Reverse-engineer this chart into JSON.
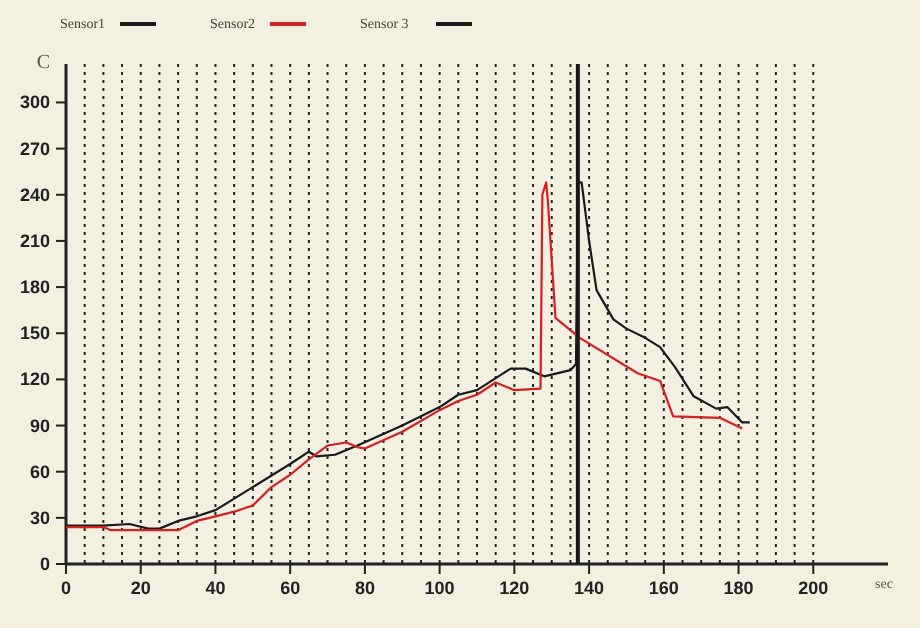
{
  "chart_data": {
    "type": "line",
    "xlabel": "sec",
    "ylabel": "C",
    "xlim": [
      0,
      220
    ],
    "ylim": [
      0,
      325
    ],
    "xticks": [
      0,
      20,
      40,
      60,
      80,
      100,
      120,
      140,
      160,
      180,
      200
    ],
    "yticks": [
      0,
      30,
      60,
      90,
      120,
      150,
      180,
      210,
      240,
      270,
      300
    ],
    "grid": "x",
    "legend": "top left",
    "marker": "none",
    "line_style": "solid",
    "series": [
      {
        "name": "Sensor1",
        "color": "#1a1a1a",
        "x": [
          0,
          10,
          17,
          22,
          25,
          30,
          35,
          40,
          50,
          60,
          65,
          67,
          72,
          78,
          90,
          100,
          105,
          110,
          119,
          123,
          128,
          135,
          136.5,
          137,
          138,
          140,
          142,
          146.5,
          150,
          155,
          159,
          163,
          168,
          174,
          177,
          181,
          183
        ],
        "values": [
          25,
          25,
          26,
          23,
          23,
          28,
          31,
          35,
          50,
          65,
          73,
          70,
          71,
          77,
          90,
          102,
          110,
          113,
          127,
          127,
          122,
          126,
          130,
          248,
          248,
          210,
          178,
          159,
          153,
          147,
          141,
          128,
          109,
          101,
          102,
          92,
          92
        ]
      },
      {
        "name": "Sensor2",
        "color": "#d42020",
        "x": [
          0,
          10,
          12,
          30,
          35,
          40,
          45,
          50,
          55,
          60,
          65,
          70,
          75,
          78,
          80,
          90,
          100,
          105,
          110,
          115,
          120,
          127,
          127.5,
          128.5,
          129,
          131,
          137.5,
          153,
          159,
          162.5,
          175,
          181
        ],
        "values": [
          24,
          24,
          22,
          22,
          28,
          31,
          34,
          38,
          50,
          58,
          68,
          77,
          79,
          76,
          75,
          86,
          100,
          106,
          110,
          118,
          113,
          114,
          240,
          248,
          235,
          160,
          147,
          124,
          119,
          96,
          95,
          88
        ]
      },
      {
        "name": "Sensor 3",
        "color": "#1a1a1a",
        "x": [
          137,
          137
        ],
        "values": [
          0,
          325
        ]
      }
    ]
  }
}
